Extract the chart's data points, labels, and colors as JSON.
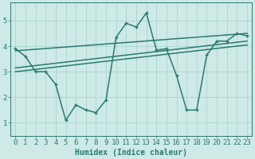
{
  "x": [
    0,
    1,
    2,
    3,
    4,
    5,
    6,
    7,
    8,
    9,
    10,
    11,
    12,
    13,
    14,
    15,
    16,
    17,
    18,
    19,
    20,
    21,
    22,
    23
  ],
  "y_main": [
    3.9,
    3.6,
    3.0,
    3.0,
    2.5,
    1.1,
    1.7,
    1.5,
    1.4,
    1.9,
    4.35,
    4.9,
    4.75,
    5.3,
    3.85,
    3.9,
    2.85,
    1.5,
    1.5,
    3.65,
    4.2,
    4.2,
    4.5,
    4.4
  ],
  "trend1_start": 3.82,
  "trend1_end": 4.5,
  "trend2_start": 3.15,
  "trend2_end": 4.2,
  "trend3_start": 3.0,
  "trend3_end": 4.05,
  "line_color": "#2a7a70",
  "bg_color": "#ceeae6",
  "grid_color": "#aad4cf",
  "xlabel": "Humidex (Indice chaleur)",
  "xlim": [
    -0.5,
    23.5
  ],
  "ylim": [
    0.5,
    5.7
  ],
  "yticks": [
    1,
    2,
    3,
    4,
    5
  ],
  "xticks": [
    0,
    1,
    2,
    3,
    4,
    5,
    6,
    7,
    8,
    9,
    10,
    11,
    12,
    13,
    14,
    15,
    16,
    17,
    18,
    19,
    20,
    21,
    22,
    23
  ],
  "figsize": [
    3.2,
    2.0
  ],
  "dpi": 100,
  "font_size": 6.5,
  "linewidth": 1.1,
  "marker": "+"
}
